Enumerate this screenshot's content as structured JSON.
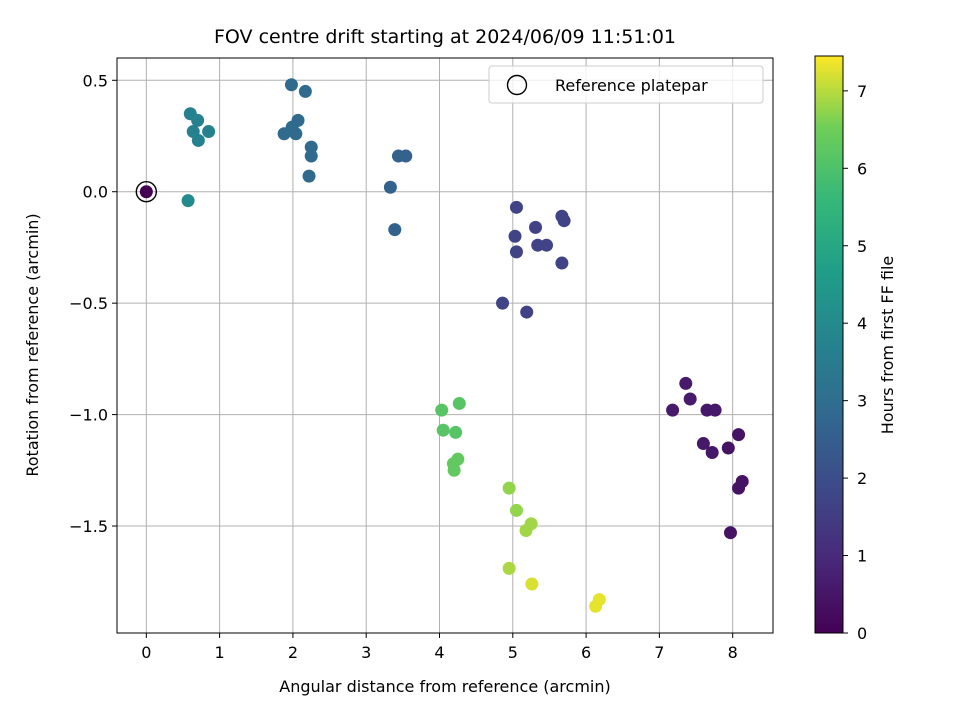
{
  "chart_data": {
    "type": "scatter",
    "title": "FOV centre drift starting at 2024/06/09 11:51:01",
    "xlabel": "Angular distance from reference (arcmin)",
    "ylabel": "Rotation from reference (arcmin)",
    "xlim": [
      -0.4,
      8.55
    ],
    "ylim": [
      -1.98,
      0.6
    ],
    "xticks": [
      0,
      1,
      2,
      3,
      4,
      5,
      6,
      7,
      8
    ],
    "yticks": [
      0.5,
      0.0,
      -0.5,
      -1.0,
      -1.5
    ],
    "xtick_labels": [
      "0",
      "1",
      "2",
      "3",
      "4",
      "5",
      "6",
      "7",
      "8"
    ],
    "ytick_labels": [
      "0.5",
      "0.0",
      "−0.5",
      "−1.0",
      "−1.5"
    ],
    "grid": true,
    "legend_position": "top-right",
    "legend": [
      {
        "label": "Reference platepar",
        "marker": "open-circle"
      }
    ],
    "colorbar": {
      "label": "Hours from first FF file",
      "colormap": "viridis",
      "range": [
        0,
        7.45
      ],
      "ticks": [
        0,
        1,
        2,
        3,
        4,
        5,
        6,
        7
      ],
      "tick_labels": [
        "0",
        "1",
        "2",
        "3",
        "4",
        "5",
        "6",
        "7"
      ]
    },
    "reference_point": {
      "x": 0.0,
      "y": 0.0
    },
    "points": [
      {
        "x": 0.0,
        "y": 0.0,
        "c": 0.0
      },
      {
        "x": 7.18,
        "y": -0.98,
        "c": 0.6
      },
      {
        "x": 7.36,
        "y": -0.86,
        "c": 0.6
      },
      {
        "x": 7.42,
        "y": -0.93,
        "c": 0.6
      },
      {
        "x": 7.65,
        "y": -0.98,
        "c": 0.55
      },
      {
        "x": 7.76,
        "y": -0.98,
        "c": 0.55
      },
      {
        "x": 7.6,
        "y": -1.13,
        "c": 0.55
      },
      {
        "x": 7.72,
        "y": -1.17,
        "c": 0.55
      },
      {
        "x": 7.94,
        "y": -1.15,
        "c": 0.4
      },
      {
        "x": 8.08,
        "y": -1.09,
        "c": 0.4
      },
      {
        "x": 8.13,
        "y": -1.3,
        "c": 0.4
      },
      {
        "x": 8.08,
        "y": -1.33,
        "c": 0.4
      },
      {
        "x": 7.97,
        "y": -1.53,
        "c": 0.4
      },
      {
        "x": 5.05,
        "y": -0.07,
        "c": 1.7
      },
      {
        "x": 5.67,
        "y": -0.11,
        "c": 1.7
      },
      {
        "x": 5.7,
        "y": -0.13,
        "c": 1.7
      },
      {
        "x": 5.31,
        "y": -0.16,
        "c": 1.7
      },
      {
        "x": 5.03,
        "y": -0.2,
        "c": 1.7
      },
      {
        "x": 5.34,
        "y": -0.24,
        "c": 1.7
      },
      {
        "x": 5.46,
        "y": -0.24,
        "c": 1.7
      },
      {
        "x": 5.05,
        "y": -0.27,
        "c": 1.7
      },
      {
        "x": 5.67,
        "y": -0.32,
        "c": 1.7
      },
      {
        "x": 4.86,
        "y": -0.5,
        "c": 1.7
      },
      {
        "x": 5.19,
        "y": -0.54,
        "c": 1.7
      },
      {
        "x": 3.44,
        "y": 0.16,
        "c": 2.65
      },
      {
        "x": 3.54,
        "y": 0.16,
        "c": 2.65
      },
      {
        "x": 3.33,
        "y": 0.02,
        "c": 2.65
      },
      {
        "x": 3.39,
        "y": -0.17,
        "c": 2.65
      },
      {
        "x": 1.98,
        "y": 0.48,
        "c": 2.9
      },
      {
        "x": 2.17,
        "y": 0.45,
        "c": 2.9
      },
      {
        "x": 2.07,
        "y": 0.32,
        "c": 2.9
      },
      {
        "x": 1.99,
        "y": 0.29,
        "c": 2.9
      },
      {
        "x": 1.88,
        "y": 0.26,
        "c": 2.9
      },
      {
        "x": 2.04,
        "y": 0.26,
        "c": 2.9
      },
      {
        "x": 2.25,
        "y": 0.2,
        "c": 2.9
      },
      {
        "x": 2.25,
        "y": 0.16,
        "c": 2.9
      },
      {
        "x": 2.22,
        "y": 0.07,
        "c": 2.9
      },
      {
        "x": 0.6,
        "y": 0.35,
        "c": 3.7
      },
      {
        "x": 0.7,
        "y": 0.32,
        "c": 3.7
      },
      {
        "x": 0.64,
        "y": 0.27,
        "c": 3.7
      },
      {
        "x": 0.85,
        "y": 0.27,
        "c": 3.7
      },
      {
        "x": 0.71,
        "y": 0.23,
        "c": 3.7
      },
      {
        "x": 0.57,
        "y": -0.04,
        "c": 4.0
      },
      {
        "x": 4.27,
        "y": -0.95,
        "c": 6.15
      },
      {
        "x": 4.03,
        "y": -0.98,
        "c": 6.15
      },
      {
        "x": 4.05,
        "y": -1.07,
        "c": 6.15
      },
      {
        "x": 4.22,
        "y": -1.08,
        "c": 6.15
      },
      {
        "x": 4.25,
        "y": -1.2,
        "c": 6.3
      },
      {
        "x": 4.19,
        "y": -1.22,
        "c": 6.3
      },
      {
        "x": 4.2,
        "y": -1.25,
        "c": 6.3
      },
      {
        "x": 4.95,
        "y": -1.33,
        "c": 6.75
      },
      {
        "x": 5.05,
        "y": -1.43,
        "c": 6.75
      },
      {
        "x": 5.25,
        "y": -1.49,
        "c": 6.85
      },
      {
        "x": 5.18,
        "y": -1.52,
        "c": 6.85
      },
      {
        "x": 4.95,
        "y": -1.69,
        "c": 6.9
      },
      {
        "x": 5.26,
        "y": -1.76,
        "c": 7.2
      },
      {
        "x": 6.18,
        "y": -1.83,
        "c": 7.3
      },
      {
        "x": 6.13,
        "y": -1.86,
        "c": 7.3
      }
    ]
  }
}
